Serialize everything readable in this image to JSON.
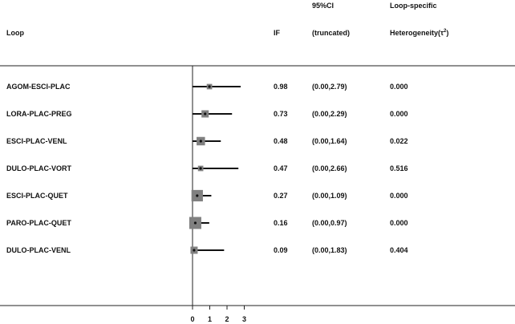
{
  "headers": {
    "loop": "Loop",
    "if": "IF",
    "ci_line1": "95%CI",
    "ci_line2": "(truncated)",
    "het_line1": "Loop-specific",
    "het_line2_pre": "Heterogeneity(τ",
    "het_sup": "2",
    "het_line2_post": ")"
  },
  "chart_data": {
    "type": "forest",
    "title": "",
    "xlabel": "",
    "ylabel": "",
    "xlim": [
      0,
      3
    ],
    "xticks": [
      0,
      1,
      2,
      3
    ],
    "reference_line": 0,
    "colors": {
      "box": "#808080",
      "line": "#111111",
      "point": "#111111"
    },
    "rows": [
      {
        "loop": "AGOM-ESCI-PLAC",
        "if": 0.98,
        "if_label": "0.98",
        "lower": 0.0,
        "upper": 2.79,
        "ci_label": "(0.00,2.79)",
        "tau2": "0.000",
        "weight": 0.45
      },
      {
        "loop": "LORA-PLAC-PREG",
        "if": 0.73,
        "if_label": "0.73",
        "lower": 0.0,
        "upper": 2.29,
        "ci_label": "(0.00,2.29)",
        "tau2": "0.000",
        "weight": 0.6
      },
      {
        "loop": "ESCI-PLAC-VENL",
        "if": 0.48,
        "if_label": "0.48",
        "lower": 0.0,
        "upper": 1.64,
        "ci_label": "(0.00,1.64)",
        "tau2": "0.022",
        "weight": 0.7
      },
      {
        "loop": "DULO-PLAC-VORT",
        "if": 0.47,
        "if_label": "0.47",
        "lower": 0.0,
        "upper": 2.66,
        "ci_label": "(0.00,2.66)",
        "tau2": "0.516",
        "weight": 0.45
      },
      {
        "loop": "ESCI-PLAC-QUET",
        "if": 0.27,
        "if_label": "0.27",
        "lower": 0.0,
        "upper": 1.09,
        "ci_label": "(0.00,1.09)",
        "tau2": "0.000",
        "weight": 0.95
      },
      {
        "loop": "PARO-PLAC-QUET",
        "if": 0.16,
        "if_label": "0.16",
        "lower": 0.0,
        "upper": 0.97,
        "ci_label": "(0.00,0.97)",
        "tau2": "0.000",
        "weight": 1.0
      },
      {
        "loop": "DULO-PLAC-VENL",
        "if": 0.09,
        "if_label": "0.09",
        "lower": 0.0,
        "upper": 1.83,
        "ci_label": "(0.00,1.83)",
        "tau2": "0.404",
        "weight": 0.6
      }
    ]
  }
}
